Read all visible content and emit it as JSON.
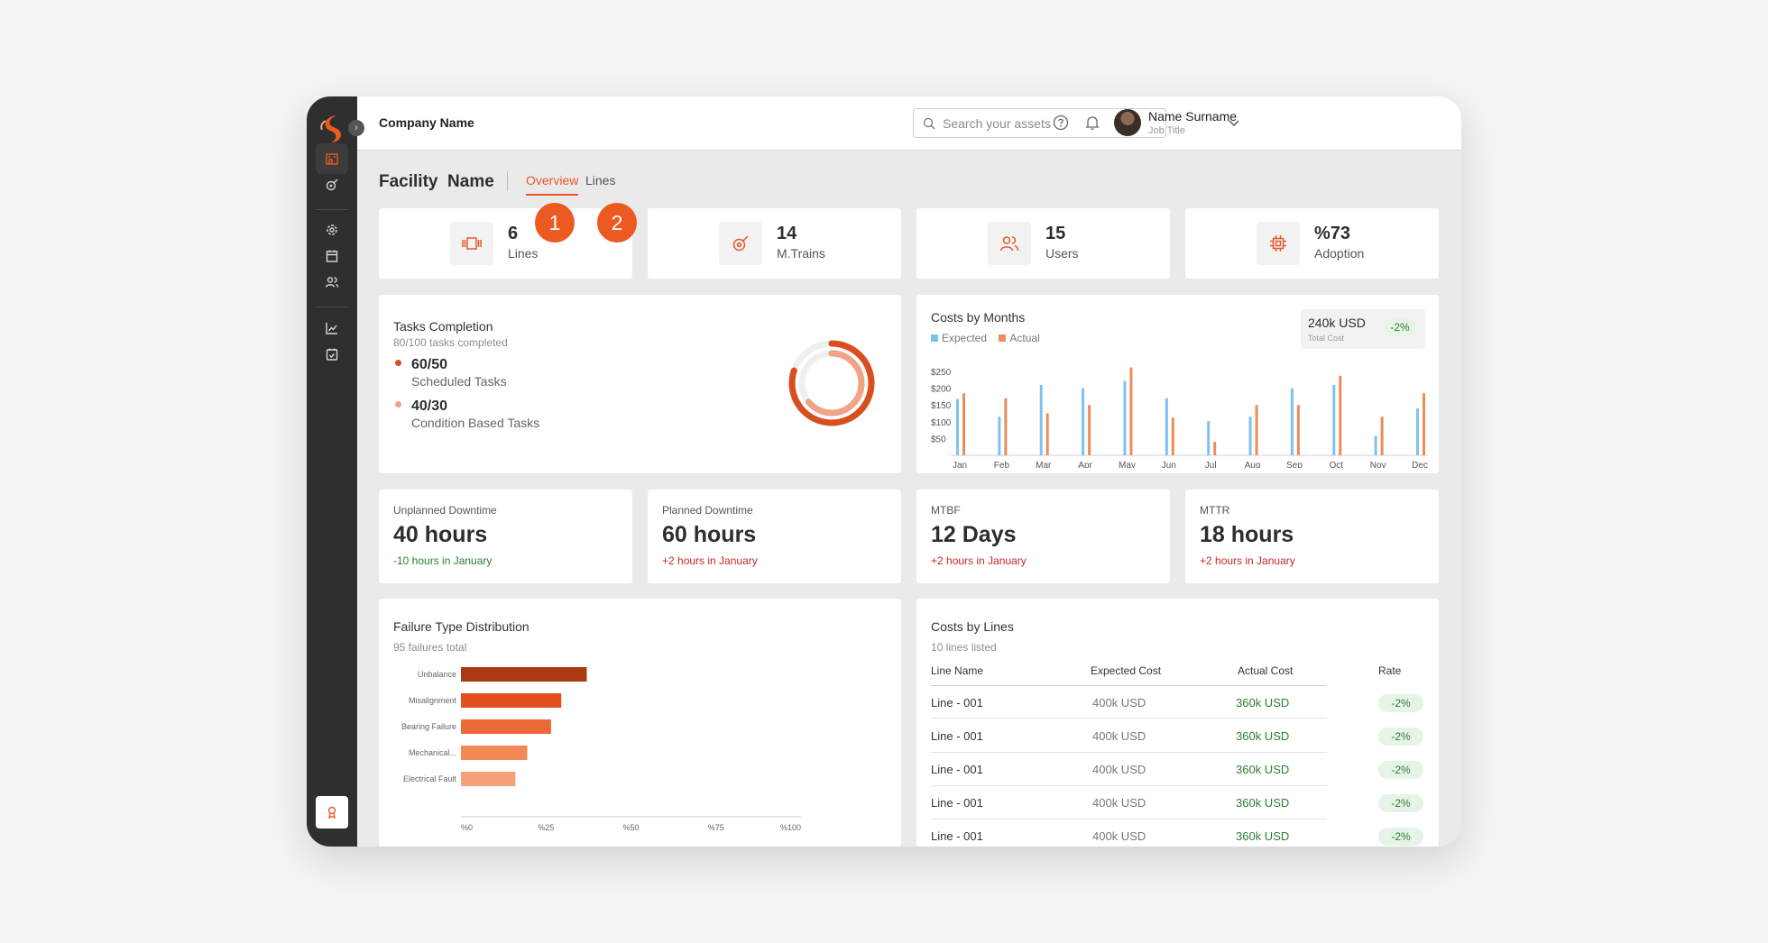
{
  "header": {
    "company": "Company Name",
    "search_placeholder": "Search your assets",
    "user_name": "Name Surname",
    "user_title": "Job Title"
  },
  "page": {
    "title": "Facility  Name",
    "tabs": [
      "Overview",
      "Lines"
    ],
    "active_tab": "Overview",
    "markers": [
      "1",
      "2"
    ]
  },
  "stats": [
    {
      "value": "6",
      "label": "Lines",
      "icon": "lines-icon"
    },
    {
      "value": "14",
      "label": "M.Trains",
      "icon": "rocket-icon"
    },
    {
      "value": "15",
      "label": "Users",
      "icon": "users-icon"
    },
    {
      "value": "%73",
      "label": "Adoption",
      "icon": "chip-icon"
    }
  ],
  "tasks": {
    "title": "Tasks Completion",
    "subtitle": "80/100 tasks completed",
    "items": [
      {
        "value": "60/50",
        "label": "Scheduled Tasks",
        "color": "#d94e1f"
      },
      {
        "value": "40/30",
        "label": "Condition Based Tasks",
        "color": "#f2a285"
      }
    ],
    "donut": {
      "outer": 0.8,
      "inner": 0.64,
      "outer_color": "#d94e1f",
      "inner_color": "#f2a285",
      "track_color": "#efefef"
    }
  },
  "costs_by_months": {
    "title": "Costs by Months",
    "total": "240k USD",
    "total_label": "Total Cost",
    "delta": "-2%",
    "chart_data": {
      "type": "bar",
      "categories": [
        "Jan",
        "Feb",
        "Mar",
        "Apr",
        "May",
        "Jun",
        "Jul",
        "Aug",
        "Sep",
        "Oct",
        "Nov",
        "Dec"
      ],
      "series": [
        {
          "name": "Expected",
          "color": "#7fc1ef",
          "values": [
            168,
            115,
            210,
            200,
            222,
            170,
            102,
            115,
            200,
            210,
            58,
            140
          ]
        },
        {
          "name": "Actual",
          "color": "#ee8c58",
          "values": [
            185,
            170,
            125,
            150,
            262,
            112,
            40,
            150,
            150,
            237,
            115,
            185
          ]
        }
      ],
      "yticks": [
        "$250",
        "$200",
        "$150",
        "$100",
        "$50"
      ],
      "ylim": [
        0,
        250
      ]
    }
  },
  "kpis": [
    {
      "label": "Unplanned Downtime",
      "value": "40 hours",
      "delta": "-10 hours in January",
      "trend": "good"
    },
    {
      "label": "Planned Downtime",
      "value": "60 hours",
      "delta": "+2 hours in January",
      "trend": "bad"
    },
    {
      "label": "MTBF",
      "value": "12 Days",
      "delta": "+2 hours in January",
      "trend": "bad"
    },
    {
      "label": "MTTR",
      "value": "18 hours",
      "delta": "+2 hours in January",
      "trend": "bad"
    }
  ],
  "failure_dist": {
    "title": "Failure Type Distribution",
    "subtitle": "95 failures total",
    "chart_data": {
      "type": "bar",
      "orientation": "horizontal",
      "categories": [
        "Unbalance",
        "Misalignment",
        "Bearing Failure",
        "Mechanical...",
        "Electrical Fault"
      ],
      "values": [
        37,
        29.5,
        26.5,
        19.5,
        16
      ],
      "colors": [
        "#a83b12",
        "#e0501f",
        "#ec6a35",
        "#f38a55",
        "#f6a07a"
      ],
      "xticks": [
        "%0",
        "%25",
        "%50",
        "%75",
        "%100"
      ],
      "xlim": [
        0,
        100
      ]
    }
  },
  "costs_by_lines": {
    "title": "Costs by Lines",
    "subtitle": "10 lines listed",
    "columns": [
      "Line Name",
      "Expected Cost",
      "Actual Cost",
      "Rate"
    ],
    "rows": [
      {
        "name": "Line - 001",
        "expected": "400k USD",
        "actual": "360k USD",
        "rate": "-2%"
      },
      {
        "name": "Line - 001",
        "expected": "400k USD",
        "actual": "360k USD",
        "rate": "-2%"
      },
      {
        "name": "Line - 001",
        "expected": "400k USD",
        "actual": "360k USD",
        "rate": "-2%"
      },
      {
        "name": "Line - 001",
        "expected": "400k USD",
        "actual": "360k USD",
        "rate": "-2%"
      },
      {
        "name": "Line - 001",
        "expected": "400k USD",
        "actual": "360k USD",
        "rate": "-2%"
      }
    ]
  },
  "colors": {
    "accent": "#e8572a",
    "sidebar": "#2f2f2f",
    "positive": "#2e7d32",
    "negative": "#c62828"
  }
}
